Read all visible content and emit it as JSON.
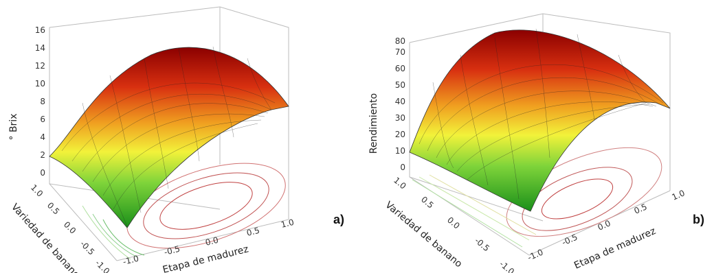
{
  "chart_data": [
    {
      "type": "surface3d",
      "panel_label": "a)",
      "zlabel": "° Brix",
      "xlabel": "Etapa de madurez",
      "ylabel": "Variedad de banano",
      "z_ticks": [
        "0",
        "2",
        "4",
        "6",
        "8",
        "10",
        "12",
        "14",
        "16"
      ],
      "x_ticks": [
        "-1.0",
        "-0.5",
        "0.0",
        "0.5",
        "1.0"
      ],
      "y_ticks": [
        "-1.0",
        "-0.5",
        "0.0",
        "0.5",
        "1.0"
      ],
      "zlim": [
        0,
        16
      ],
      "xlim": [
        -1,
        1
      ],
      "ylim": [
        -1,
        1
      ],
      "surface_peak_approx": 14.5,
      "colormap": [
        "#1a8f1a",
        "#7fd43a",
        "#f2f23a",
        "#f0a020",
        "#d83010",
        "#8b0000"
      ]
    },
    {
      "type": "surface3d",
      "panel_label": "b)",
      "zlabel": "Rendimiento",
      "xlabel": "Etapa de madurez",
      "ylabel": "Variedad de banano",
      "z_ticks": [
        "0",
        "10",
        "20",
        "30",
        "40",
        "50",
        "60",
        "70",
        "80"
      ],
      "x_ticks": [
        "-1.0",
        "-0.5",
        "0.0",
        "0.5",
        "1.0"
      ],
      "y_ticks": [
        "-1.0",
        "-0.5",
        "0.0",
        "0.5",
        "1.0"
      ],
      "zlim": [
        0,
        80
      ],
      "xlim": [
        -1,
        1
      ],
      "ylim": [
        -1,
        1
      ],
      "surface_peak_approx": 76,
      "colormap": [
        "#1a8f1a",
        "#7fd43a",
        "#f2f23a",
        "#f0a020",
        "#d83010",
        "#8b0000"
      ]
    }
  ]
}
